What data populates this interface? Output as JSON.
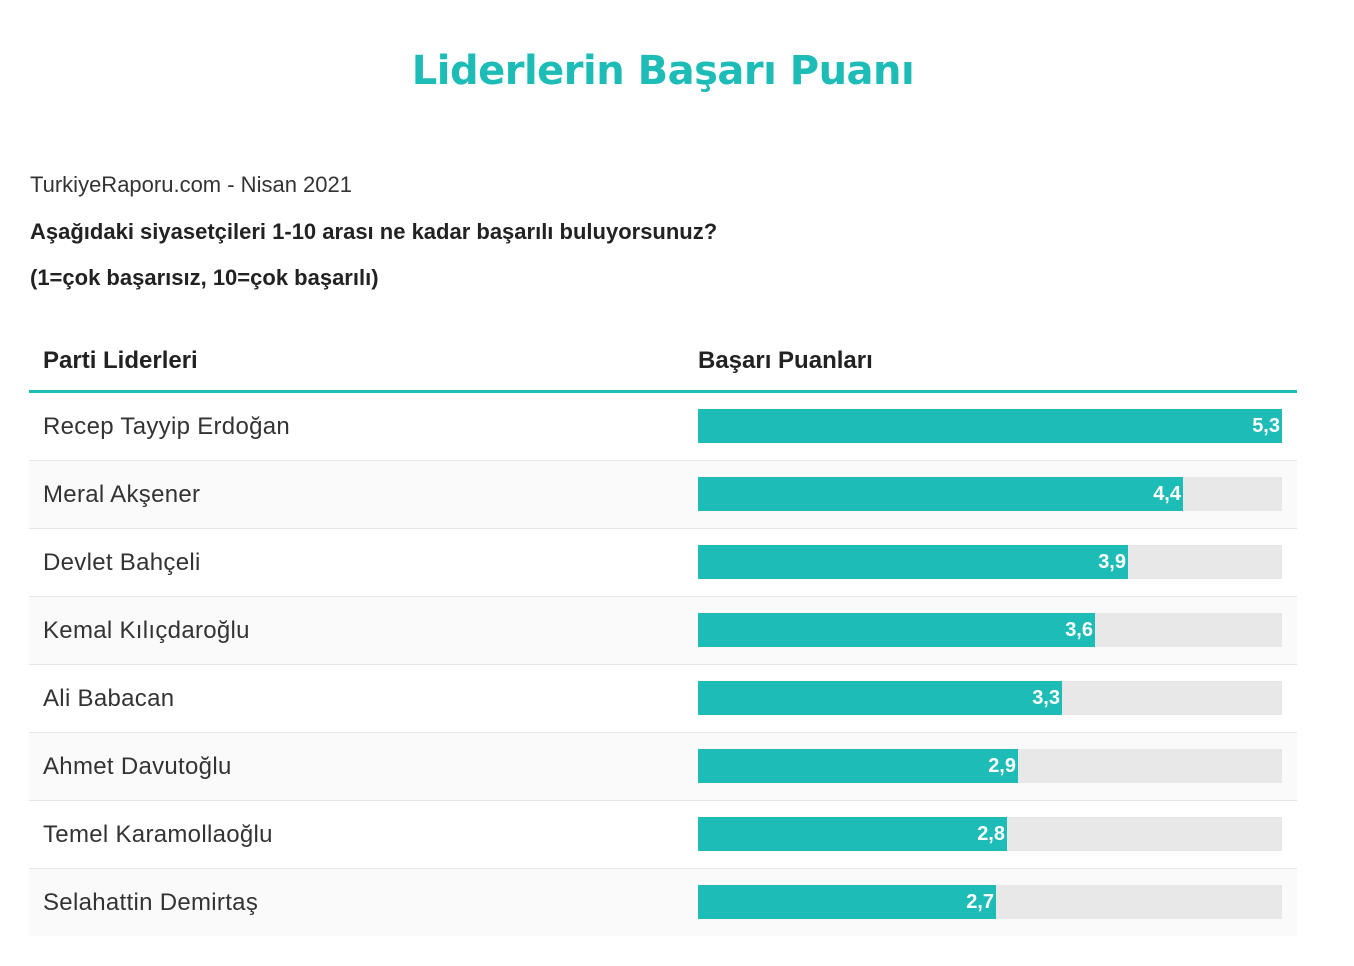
{
  "title": "Liderlerin Başarı Puanı",
  "source": "TurkiyeRaporu.com - Nisan 2021",
  "question": "Aşağıdaki siyasetçileri 1-10 arası ne kadar başarılı buluyorsunuz?",
  "scale_note": "(1=çok başarısız, 10=çok başarılı)",
  "table": {
    "col_name_header": "Parti Liderleri",
    "col_value_header": "Başarı Puanları"
  },
  "colors": {
    "accent": "#1ebcb6",
    "track": "#e8e8e8"
  },
  "chart_data": {
    "type": "bar",
    "orientation": "horizontal",
    "title": "Liderlerin Başarı Puanı",
    "subtitle": "TurkiyeRaporu.com - Nisan 2021",
    "xlabel": "Başarı Puanları",
    "ylabel": "Parti Liderleri",
    "xlim": [
      0,
      5.3
    ],
    "categories": [
      "Recep Tayyip Erdoğan",
      "Meral Akşener",
      "Devlet Bahçeli",
      "Kemal Kılıçdaroğlu",
      "Ali Babacan",
      "Ahmet Davutoğlu",
      "Temel Karamollaoğlu",
      "Selahattin Demirtaş"
    ],
    "values": [
      5.3,
      4.4,
      3.9,
      3.6,
      3.3,
      2.9,
      2.8,
      2.7
    ],
    "value_labels": [
      "5,3",
      "4,4",
      "3,9",
      "3,6",
      "3,3",
      "2,9",
      "2,8",
      "2,7"
    ]
  }
}
